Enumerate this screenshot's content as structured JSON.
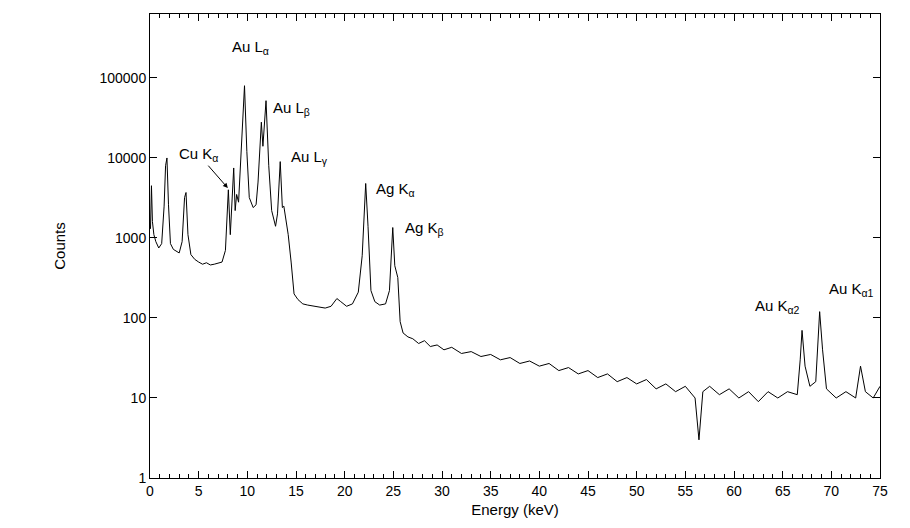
{
  "chart_data": {
    "type": "line",
    "x_label": "Energy (keV)",
    "y_label": "Counts",
    "color": "#000000",
    "log": "y",
    "grid": false,
    "xlim": [
      0,
      75
    ],
    "ylim": [
      1,
      630000
    ],
    "xticks": [
      0,
      5,
      10,
      15,
      20,
      25,
      30,
      35,
      40,
      45,
      50,
      55,
      60,
      65,
      70,
      75
    ],
    "yticks": [
      1,
      10,
      100,
      1000,
      10000,
      100000
    ],
    "x": [
      0.05,
      0.15,
      0.25,
      0.4,
      0.6,
      0.9,
      1.2,
      1.45,
      1.6,
      1.74,
      1.9,
      2.1,
      2.4,
      2.7,
      3.0,
      3.3,
      3.55,
      3.7,
      3.9,
      4.2,
      4.6,
      5.0,
      5.4,
      5.8,
      6.2,
      6.6,
      7.0,
      7.4,
      7.75,
      8.05,
      8.25,
      8.4,
      8.6,
      8.75,
      8.9,
      9.1,
      9.4,
      9.71,
      9.95,
      10.2,
      10.6,
      10.9,
      11.1,
      11.44,
      11.6,
      11.92,
      12.2,
      12.5,
      12.9,
      13.1,
      13.38,
      13.6,
      13.75,
      13.95,
      14.2,
      14.5,
      14.8,
      15.2,
      15.7,
      16.2,
      16.8,
      17.4,
      18.0,
      18.6,
      19.2,
      19.6,
      20.2,
      20.8,
      21.4,
      21.8,
      22.0,
      22.16,
      22.4,
      22.7,
      23.1,
      23.6,
      24.2,
      24.6,
      24.94,
      25.15,
      25.46,
      25.7,
      26.0,
      26.5,
      27.0,
      27.6,
      28.2,
      28.8,
      29.5,
      30.2,
      31.0,
      32.0,
      33.0,
      34.0,
      35.0,
      36.0,
      37.0,
      38.0,
      39.0,
      40.0,
      41.0,
      42.0,
      43.0,
      44.0,
      45.0,
      46.0,
      47.0,
      48.0,
      49.0,
      50.0,
      51.0,
      52.0,
      53.0,
      54.0,
      55.0,
      56.0,
      56.4,
      56.8,
      57.5,
      58.5,
      59.5,
      60.5,
      61.5,
      62.5,
      63.5,
      64.5,
      65.5,
      66.5,
      66.8,
      66.99,
      67.3,
      67.8,
      68.4,
      68.6,
      68.8,
      69.1,
      69.5,
      70.5,
      71.5,
      72.5,
      73.0,
      73.5,
      74.3,
      75.0
    ],
    "values": [
      1300,
      4500,
      1600,
      1100,
      900,
      750,
      850,
      2500,
      8000,
      10000,
      2600,
      850,
      720,
      680,
      650,
      900,
      3200,
      3700,
      1100,
      620,
      540,
      500,
      470,
      490,
      460,
      470,
      480,
      500,
      700,
      4000,
      1100,
      3000,
      7500,
      2200,
      3500,
      2800,
      15000,
      80000,
      12000,
      3200,
      2400,
      2600,
      5000,
      28000,
      14000,
      52000,
      8000,
      2200,
      1400,
      2000,
      9000,
      2400,
      2500,
      1800,
      1100,
      500,
      200,
      170,
      150,
      145,
      140,
      138,
      133,
      140,
      175,
      160,
      140,
      150,
      210,
      600,
      2500,
      4800,
      1400,
      220,
      160,
      145,
      150,
      220,
      1350,
      450,
      320,
      90,
      65,
      58,
      55,
      48,
      52,
      44,
      46,
      40,
      43,
      36,
      38,
      33,
      35,
      30,
      32,
      27,
      29,
      25,
      27,
      22,
      24,
      20,
      22,
      18,
      20,
      16,
      18,
      15,
      17,
      13,
      15,
      12,
      14,
      10,
      3,
      12,
      14,
      11,
      13,
      10,
      12,
      9,
      12,
      10,
      12,
      11,
      30,
      70,
      25,
      14,
      16,
      45,
      120,
      40,
      13,
      10,
      12,
      10,
      25,
      12,
      10,
      14
    ],
    "annotations": [
      {
        "text": "Au L",
        "subscript": "α",
        "x": 8.2,
        "y": 240000
      },
      {
        "text": "Au L",
        "subscript": "β",
        "x": 12.4,
        "y": 42000
      },
      {
        "text": "Au L",
        "subscript": "γ",
        "x": 14.3,
        "y": 10000
      },
      {
        "text": "Cu K",
        "subscript": "α",
        "x": 5.0,
        "y": 11000,
        "arrow_to": [
          8.0,
          4200
        ]
      },
      {
        "text": "Ag K",
        "subscript": "α",
        "x": 23.0,
        "y": 4000
      },
      {
        "text": "Ag K",
        "subscript": "β",
        "x": 26.0,
        "y": 1300
      },
      {
        "text": "Au K",
        "subscript": "α2",
        "x": 62.0,
        "y": 140
      },
      {
        "text": "Au K",
        "subscript": "α1",
        "x": 69.6,
        "y": 230
      }
    ]
  }
}
